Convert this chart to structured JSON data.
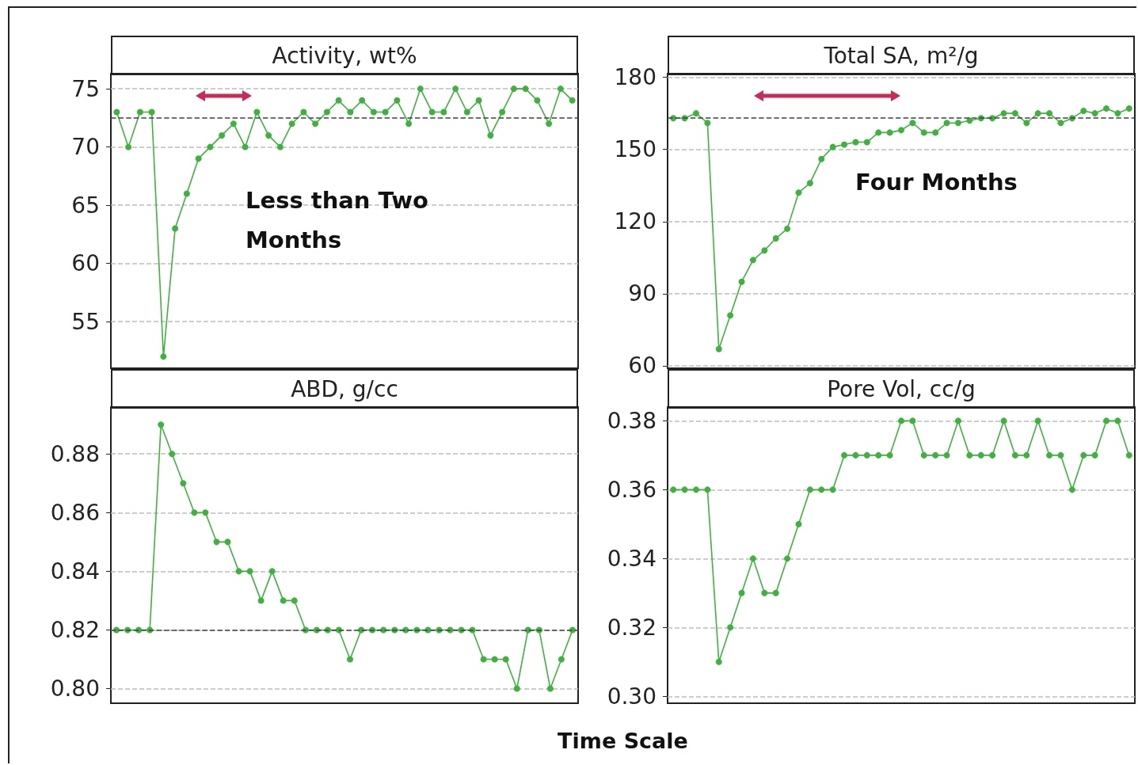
{
  "chart_data": [
    {
      "type": "line",
      "title": "Activity, wt%",
      "categories": [
        null,
        null,
        null,
        null,
        null,
        null,
        null,
        null,
        null,
        null,
        null,
        null,
        null,
        null,
        null,
        null,
        null,
        null,
        null,
        null,
        null,
        null,
        null,
        null,
        null,
        null,
        null,
        null,
        null,
        null,
        null,
        null,
        null,
        null,
        null,
        null,
        null,
        null,
        null,
        null
      ],
      "series": [
        {
          "color": "#3cb43c",
          "values": [
            73,
            70,
            73,
            73,
            52,
            63,
            66,
            69,
            70,
            71,
            72,
            70,
            73,
            71,
            70,
            72,
            73,
            72,
            73,
            74,
            73,
            74,
            73,
            73,
            74,
            72,
            75,
            73,
            73,
            75,
            73,
            74,
            71,
            73,
            75,
            75,
            74,
            72,
            75,
            74
          ]
        }
      ],
      "ylim": [
        51,
        76.3
      ],
      "yticks": [
        55,
        60,
        65,
        70,
        75
      ],
      "grid": "y",
      "marker": "circle",
      "line_style": "solid",
      "tick_labels": "y",
      "ref_lines": [
        {
          "axis": "y",
          "value": 72.5,
          "color": "#404040",
          "line_style": "dashed"
        }
      ],
      "annotations": [
        "Less than Two Months"
      ]
    },
    {
      "type": "line",
      "title": "Total SA, m²/g",
      "categories": [
        null,
        null,
        null,
        null,
        null,
        null,
        null,
        null,
        null,
        null,
        null,
        null,
        null,
        null,
        null,
        null,
        null,
        null,
        null,
        null,
        null,
        null,
        null,
        null,
        null,
        null,
        null,
        null,
        null,
        null,
        null,
        null,
        null,
        null,
        null,
        null,
        null,
        null,
        null,
        null,
        null
      ],
      "series": [
        {
          "color": "#3cb43c",
          "values": [
            163,
            163,
            165,
            161,
            67,
            81,
            95,
            104,
            108,
            113,
            117,
            132,
            136,
            146,
            151,
            152,
            153,
            153,
            157,
            157,
            158,
            161,
            157,
            157,
            161,
            161,
            162,
            163,
            163,
            165,
            165,
            161,
            165,
            165,
            161,
            163,
            166,
            165,
            167,
            165,
            167
          ]
        }
      ],
      "ylim": [
        59,
        181.5
      ],
      "yticks": [
        60,
        90,
        120,
        150,
        180
      ],
      "grid": "y",
      "marker": "circle",
      "line_style": "solid",
      "tick_labels": "y",
      "ref_lines": [
        {
          "axis": "y",
          "value": 163,
          "color": "#404040",
          "line_style": "dashed"
        }
      ],
      "annotations": [
        "Four Months"
      ]
    },
    {
      "type": "line",
      "title": "ABD, g/cc",
      "xlabel": "Time Scale",
      "categories": [
        null,
        null,
        null,
        null,
        null,
        null,
        null,
        null,
        null,
        null,
        null,
        null,
        null,
        null,
        null,
        null,
        null,
        null,
        null,
        null,
        null,
        null,
        null,
        null,
        null,
        null,
        null,
        null,
        null,
        null,
        null,
        null,
        null,
        null,
        null,
        null,
        null,
        null,
        null,
        null,
        null,
        null
      ],
      "series": [
        {
          "color": "#3cb43c",
          "values": [
            0.82,
            0.82,
            0.82,
            0.82,
            0.89,
            0.88,
            0.87,
            0.86,
            0.86,
            0.85,
            0.85,
            0.84,
            0.84,
            0.83,
            0.84,
            0.83,
            0.83,
            0.82,
            0.82,
            0.82,
            0.82,
            0.81,
            0.82,
            0.82,
            0.82,
            0.82,
            0.82,
            0.82,
            0.82,
            0.82,
            0.82,
            0.82,
            0.82,
            0.81,
            0.81,
            0.81,
            0.8,
            0.82,
            0.82,
            0.8,
            0.81,
            0.82
          ]
        }
      ],
      "ylim": [
        0.795,
        0.896
      ],
      "yticks": [
        {
          "value": 0.8,
          "label": "0.80"
        },
        {
          "value": 0.82,
          "label": "0.82"
        },
        {
          "value": 0.84,
          "label": "0.84"
        },
        {
          "value": 0.86,
          "label": "0.86"
        },
        {
          "value": 0.88,
          "label": "0.88"
        }
      ],
      "grid": "y",
      "marker": "circle",
      "line_style": "solid",
      "tick_labels": "y",
      "ref_lines": [
        {
          "axis": "y",
          "value": 0.82,
          "color": "#404040",
          "line_style": "dashed"
        }
      ]
    },
    {
      "type": "line",
      "title": "Pore Vol, cc/g",
      "categories": [
        null,
        null,
        null,
        null,
        null,
        null,
        null,
        null,
        null,
        null,
        null,
        null,
        null,
        null,
        null,
        null,
        null,
        null,
        null,
        null,
        null,
        null,
        null,
        null,
        null,
        null,
        null,
        null,
        null,
        null,
        null,
        null,
        null,
        null,
        null,
        null,
        null,
        null,
        null,
        null,
        null
      ],
      "series": [
        {
          "color": "#3cb43c",
          "values": [
            0.36,
            0.36,
            0.36,
            0.36,
            0.31,
            0.32,
            0.33,
            0.34,
            0.33,
            0.33,
            0.34,
            0.35,
            0.36,
            0.36,
            0.36,
            0.37,
            0.37,
            0.37,
            0.37,
            0.37,
            0.38,
            0.38,
            0.37,
            0.37,
            0.37,
            0.38,
            0.37,
            0.37,
            0.37,
            0.38,
            0.37,
            0.37,
            0.38,
            0.37,
            0.37,
            0.36,
            0.37,
            0.37,
            0.38,
            0.38,
            0.37
          ]
        }
      ],
      "ylim": [
        0.298,
        0.384
      ],
      "yticks": [
        {
          "value": 0.3,
          "label": "0.30"
        },
        {
          "value": 0.32,
          "label": "0.32"
        },
        {
          "value": 0.34,
          "label": "0.34"
        },
        {
          "value": 0.36,
          "label": "0.36"
        },
        {
          "value": 0.38,
          "label": "0.38"
        }
      ],
      "grid": "y",
      "marker": "circle",
      "line_style": "solid",
      "tick_labels": "y"
    }
  ]
}
